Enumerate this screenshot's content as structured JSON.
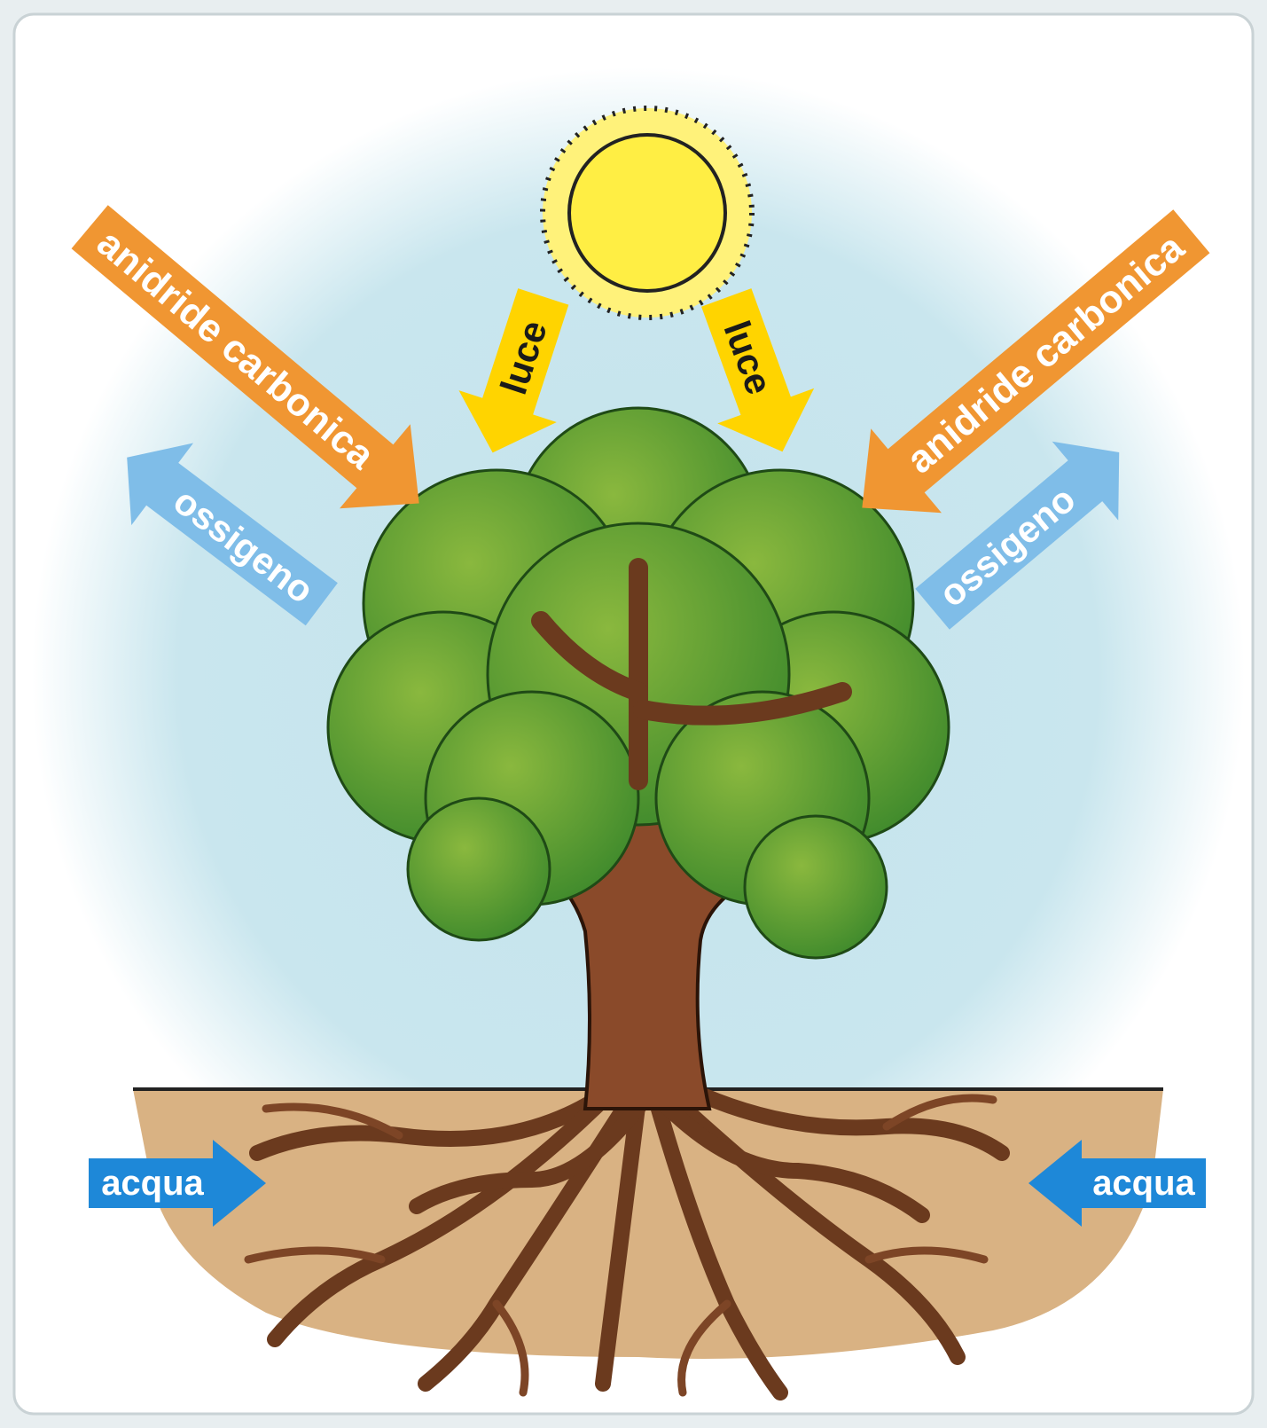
{
  "arrows": [
    {
      "label": "anidride carbonica"
    },
    {
      "label": "anidride carbonica"
    },
    {
      "label": "luce"
    },
    {
      "label": "luce"
    },
    {
      "label": "ossigeno"
    },
    {
      "label": "ossigeno"
    },
    {
      "label": "acqua"
    },
    {
      "label": "acqua"
    }
  ]
}
